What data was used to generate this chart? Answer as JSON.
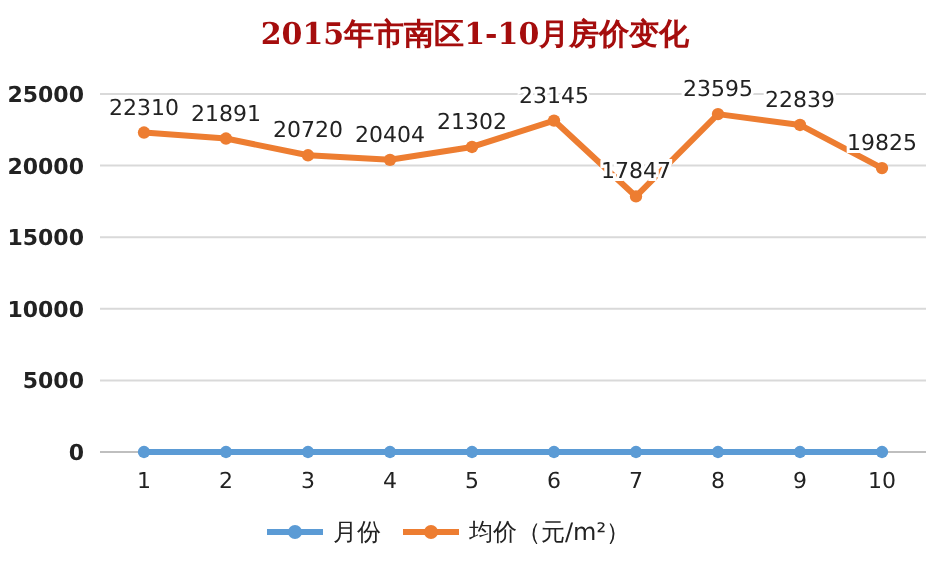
{
  "chart_data": {
    "type": "line",
    "title": "2015年市南区1-10月房价变化",
    "categories": [
      "1",
      "2",
      "3",
      "4",
      "5",
      "6",
      "7",
      "8",
      "9",
      "10"
    ],
    "series": [
      {
        "name": "月份",
        "color": "#5b9bd5",
        "values": [
          0,
          0,
          0,
          0,
          0,
          0,
          0,
          0,
          0,
          0
        ]
      },
      {
        "name": "均价（元/m²）",
        "color": "#ed7d31",
        "values": [
          22310,
          21891,
          20720,
          20404,
          21302,
          23145,
          17847,
          23595,
          22839,
          19825
        ],
        "value_labels": [
          "22310",
          "21891",
          "20720",
          "20404",
          "21302",
          "23145",
          "17847",
          "23595",
          "22839",
          "19825"
        ]
      }
    ],
    "ylim": [
      0,
      25000
    ],
    "yticks": [
      0,
      5000,
      10000,
      15000,
      20000,
      25000
    ],
    "grid": "y",
    "legend": "bottom",
    "marker": "circle",
    "line_style": "solid"
  }
}
